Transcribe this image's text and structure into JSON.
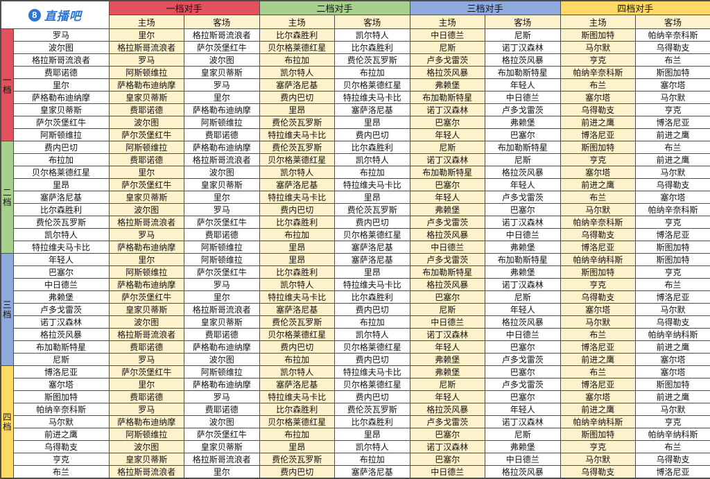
{
  "logo": {
    "badge": "8",
    "text": "直播吧",
    "color": "#2b74d2"
  },
  "header": {
    "tiers": [
      {
        "label": "一档对手",
        "color": "#e2525c"
      },
      {
        "label": "二档对手",
        "color": "#a8d08d"
      },
      {
        "label": "三档对手",
        "color": "#8faadc"
      },
      {
        "label": "四档对手",
        "color": "#ffd966"
      }
    ],
    "home_label": "主场",
    "away_label": "客场"
  },
  "chart_data": {
    "type": "table",
    "column_groups": [
      "一档对手",
      "二档对手",
      "三档对手",
      "四档对手"
    ],
    "subcolumns": [
      "主场",
      "客场"
    ],
    "sections": [
      {
        "tier_label": "一档",
        "color": "#e2525c",
        "rows": [
          {
            "team": "罗马",
            "cells": [
              "里尔",
              "格拉斯哥流浪者",
              "比尔森胜利",
              "凯尔特人",
              "中日德兰",
              "尼斯",
              "斯图加特",
              "帕纳辛奈科斯"
            ]
          },
          {
            "team": "波尔图",
            "cells": [
              "格拉斯哥流浪者",
              "萨尔茨堡红牛",
              "贝尔格莱德红星",
              "比尔森胜利",
              "尼斯",
              "诺丁汉森林",
              "马尔默",
              "乌得勒支"
            ]
          },
          {
            "team": "格拉斯哥流浪者",
            "cells": [
              "罗马",
              "波尔图",
              "布拉加",
              "费伦茨瓦罗斯",
              "卢多戈雷茨",
              "格拉茨风暴",
              "亨克",
              "布兰"
            ]
          },
          {
            "team": "费耶诺德",
            "cells": [
              "阿斯顿维拉",
              "皇家贝蒂斯",
              "凯尔特人",
              "布拉加",
              "格拉茨风暴",
              "布加勒斯特星",
              "帕纳辛奈科斯",
              "斯图加特"
            ]
          },
          {
            "team": "里尔",
            "cells": [
              "萨格勒布迪纳摩",
              "罗马",
              "塞萨洛尼基",
              "贝尔格莱德红星",
              "弗赖堡",
              "年轻人",
              "布兰",
              "塞尔塔"
            ]
          },
          {
            "team": "萨格勒布迪纳摩",
            "cells": [
              "皇家贝蒂斯",
              "里尔",
              "费内巴切",
              "特拉维夫马卡比",
              "布加勒斯特星",
              "中日德兰",
              "塞尔塔",
              "马尔默"
            ]
          },
          {
            "team": "皇家贝蒂斯",
            "cells": [
              "费耶诺德",
              "萨格勒布迪纳摩",
              "里昂",
              "塞萨洛尼基",
              "诺丁汉森林",
              "卢多戈雷茨",
              "乌得勒支",
              "亨克"
            ]
          },
          {
            "team": "萨尔茨堡红牛",
            "cells": [
              "波尔图",
              "阿斯顿维拉",
              "费伦茨瓦罗斯",
              "里昂",
              "巴塞尔",
              "弗赖堡",
              "前进之鹰",
              "博洛尼亚"
            ]
          },
          {
            "team": "阿斯顿维拉",
            "cells": [
              "萨尔茨堡红牛",
              "费耶诺德",
              "特拉维夫马卡比",
              "费内巴切",
              "年轻人",
              "巴塞尔",
              "博洛尼亚",
              "前进之鹰"
            ]
          }
        ]
      },
      {
        "tier_label": "二档",
        "color": "#a8d08d",
        "rows": [
          {
            "team": "费内巴切",
            "cells": [
              "阿斯顿维拉",
              "萨格勒布迪纳摩",
              "费伦茨瓦罗斯",
              "比尔森胜利",
              "尼斯",
              "布加勒斯特星",
              "斯图加特",
              "布兰"
            ]
          },
          {
            "team": "布拉加",
            "cells": [
              "费耶诺德",
              "格拉斯哥流浪者",
              "贝尔格莱德红星",
              "凯尔特人",
              "诺丁汉森林",
              "尼斯",
              "亨克",
              "前进之鹰"
            ]
          },
          {
            "team": "贝尔格莱德红星",
            "cells": [
              "里尔",
              "波尔图",
              "凯尔特人",
              "布拉加",
              "布加勒斯特星",
              "格拉茨风暴",
              "塞尔塔",
              "马尔默"
            ]
          },
          {
            "team": "里昂",
            "cells": [
              "萨尔茨堡红牛",
              "皇家贝蒂斯",
              "塞萨洛尼基",
              "特拉维夫马卡比",
              "巴塞尔",
              "年轻人",
              "前进之鹰",
              "乌得勒支"
            ]
          },
          {
            "team": "塞萨洛尼基",
            "cells": [
              "皇家贝蒂斯",
              "里尔",
              "特拉维夫马卡比",
              "里昂",
              "年轻人",
              "卢多戈雷茨",
              "布兰",
              "塞尔塔"
            ]
          },
          {
            "team": "比尔森胜利",
            "cells": [
              "波尔图",
              "罗马",
              "费内巴切",
              "费伦茨瓦罗斯",
              "弗赖堡",
              "巴塞尔",
              "马尔默",
              "帕纳辛奈科斯"
            ]
          },
          {
            "team": "费伦茨瓦罗斯",
            "cells": [
              "格拉斯哥流浪者",
              "萨尔茨堡红牛",
              "比尔森胜利",
              "费内巴切",
              "卢多戈雷茨",
              "诺丁汉森林",
              "帕纳辛奈科斯",
              "亨克"
            ]
          },
          {
            "team": "凯尔特人",
            "cells": [
              "罗马",
              "费耶诺德",
              "布拉加",
              "贝尔格莱德红星",
              "格拉茨风暴",
              "中日德兰",
              "乌得勒支",
              "博洛尼亚"
            ]
          },
          {
            "team": "特拉维夫马卡比",
            "cells": [
              "萨格勒布迪纳摩",
              "阿斯顿维拉",
              "里昂",
              "塞萨洛尼基",
              "中日德兰",
              "弗赖堡",
              "博洛尼亚",
              "斯图加特"
            ]
          }
        ]
      },
      {
        "tier_label": "三档",
        "color": "#8faadc",
        "rows": [
          {
            "team": "年轻人",
            "cells": [
              "里尔",
              "阿斯顿维拉",
              "里昂",
              "塞萨洛尼基",
              "卢多戈雷茨",
              "布加勒斯特星",
              "帕纳辛纳科斯",
              "斯图加特"
            ]
          },
          {
            "team": "巴塞尔",
            "cells": [
              "阿斯顿维拉",
              "萨尔茨堡红牛",
              "比尔森胜利",
              "里昂",
              "布加勒斯特星",
              "弗赖堡",
              "斯图加特",
              "亨克"
            ]
          },
          {
            "team": "中日德兰",
            "cells": [
              "萨格勒布迪纳摩",
              "罗马",
              "凯尔特人",
              "特拉维夫马卡比",
              "格拉茨风暴",
              "诺丁汉森林",
              "亨克",
              "布兰"
            ]
          },
          {
            "team": "弗赖堡",
            "cells": [
              "萨尔茨堡红牛",
              "里尔",
              "特拉维夫马卡比",
              "比尔森胜利",
              "巴塞尔",
              "尼斯",
              "乌得勒支",
              "博洛尼亚"
            ]
          },
          {
            "team": "卢多戈雷茨",
            "cells": [
              "皇家贝蒂斯",
              "格拉斯哥流浪者",
              "塞萨洛尼基",
              "费内巴切",
              "尼斯",
              "年轻人",
              "塞尔塔",
              "马尔默"
            ]
          },
          {
            "team": "诺丁汉森林",
            "cells": [
              "波尔图",
              "皇家贝蒂斯",
              "费伦茨瓦罗斯",
              "布拉加",
              "中日德兰",
              "格拉茨风暴",
              "马尔默",
              "乌得勒支"
            ]
          },
          {
            "team": "格拉茨风暴",
            "cells": [
              "格拉斯哥流浪者",
              "费耶诺德",
              "贝尔格莱德红星",
              "凯尔特人",
              "诺丁汉森林",
              "中日德兰",
              "布兰",
              "帕纳辛纳科斯"
            ]
          },
          {
            "team": "布加勒斯特星",
            "cells": [
              "费耶诺德",
              "萨格勒布迪纳摩",
              "费内巴切",
              "贝尔格莱德红星",
              "年轻人",
              "巴塞尔",
              "博洛尼亚",
              "前进之鹰"
            ]
          },
          {
            "team": "尼斯",
            "cells": [
              "罗马",
              "波尔图",
              "布拉加",
              "费内巴切",
              "弗赖堡",
              "卢多戈雷茨",
              "前进之鹰",
              "塞尔塔"
            ]
          }
        ]
      },
      {
        "tier_label": "四档",
        "color": "#ffd966",
        "rows": [
          {
            "team": "博洛尼亚",
            "cells": [
              "萨尔茨堡红牛",
              "阿斯顿维拉",
              "凯尔特人",
              "特拉维夫马卡比",
              "弗赖堡",
              "巴塞尔",
              "布兰",
              "塞尔塔"
            ]
          },
          {
            "team": "塞尔塔",
            "cells": [
              "里尔",
              "萨格勒布迪纳摩",
              "塞萨洛尼基",
              "贝尔格莱德红星",
              "尼斯",
              "卢多戈雷茨",
              "博洛尼亚",
              "斯图加特"
            ]
          },
          {
            "team": "斯图加特",
            "cells": [
              "费耶诺德",
              "罗马",
              "特拉维夫马卡比",
              "费内巴切",
              "年轻人",
              "巴塞尔",
              "塞尔塔",
              "前进之鹰"
            ]
          },
          {
            "team": "帕纳辛奈科斯",
            "cells": [
              "罗马",
              "费耶诺德",
              "比尔森胜利",
              "费伦茨瓦罗斯",
              "格拉茨风暴",
              "年轻人",
              "前进之鹰",
              "马尔默"
            ]
          },
          {
            "team": "马尔默",
            "cells": [
              "萨格勒布迪纳摩",
              "波尔图",
              "贝尔格莱德红星",
              "比尔森胜利",
              "卢多戈雷茨",
              "诺丁汉森林",
              "帕纳辛纳科斯",
              "亨克"
            ]
          },
          {
            "team": "前进之鹰",
            "cells": [
              "阿斯顿维拉",
              "萨尔茨堡红牛",
              "布拉加",
              "里昂",
              "巴塞尔",
              "尼斯",
              "斯图加特",
              "帕纳辛纳科斯"
            ]
          },
          {
            "team": "乌得勒支",
            "cells": [
              "波尔图",
              "皇家贝蒂斯",
              "里昂",
              "凯尔特人",
              "诺丁汉森林",
              "弗赖堡",
              "亨克",
              "布兰"
            ]
          },
          {
            "team": "亨克",
            "cells": [
              "皇家贝蒂斯",
              "格拉斯哥流浪者",
              "费伦茨瓦罗斯",
              "布拉加",
              "巴塞尔",
              "中日德兰",
              "马尔默",
              "乌得勒支"
            ]
          },
          {
            "team": "布兰",
            "cells": [
              "格拉斯哥流浪者",
              "里尔",
              "费内巴切",
              "塞萨洛尼基",
              "中日德兰",
              "格拉茨风暴",
              "乌得勒支",
              "博洛尼亚"
            ]
          }
        ]
      }
    ]
  }
}
